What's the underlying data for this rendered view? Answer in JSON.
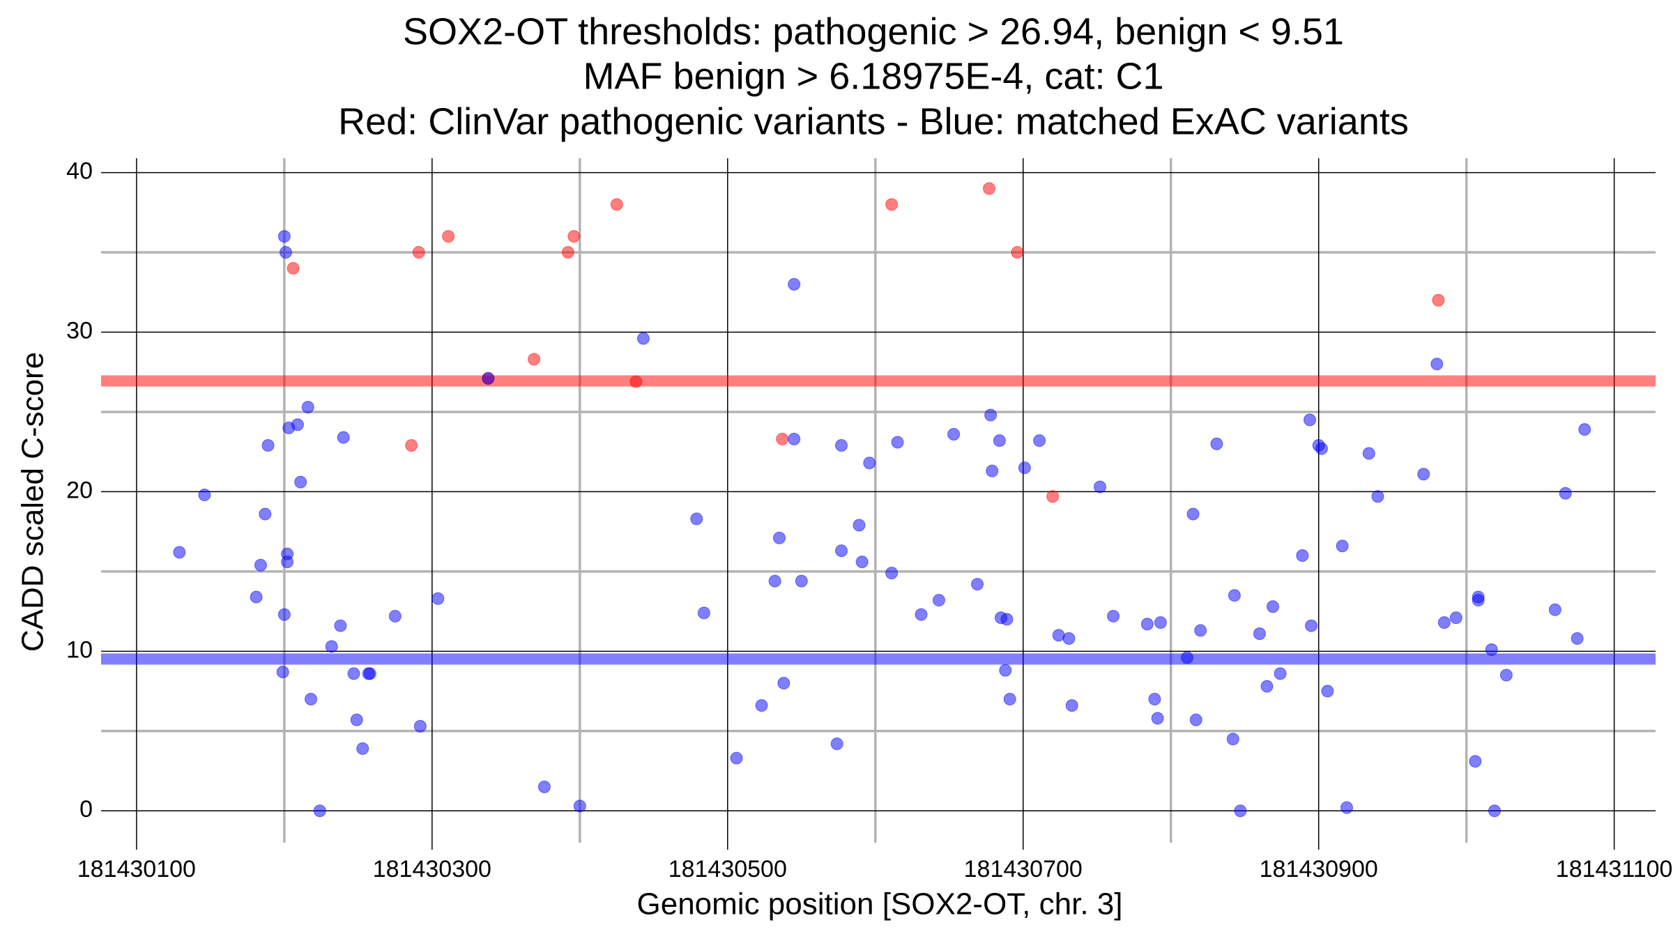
{
  "chart_data": {
    "type": "scatter",
    "title": [
      "SOX2-OT thresholds: pathogenic > 26.94, benign < 9.51",
      "MAF benign > 6.18975E-4, cat: C1",
      "Red: ClinVar pathogenic variants - Blue: matched ExAC variants"
    ],
    "x_label": "Genomic position [SOX2-OT, chr. 3]",
    "y_label": "CADD scaled C-score",
    "xlim": [
      181430076,
      181431128
    ],
    "ylim": [
      -2,
      40.9
    ],
    "xticks": [
      181430100,
      181430300,
      181430500,
      181430700,
      181430900,
      181431100
    ],
    "yticks": [
      0,
      10,
      20,
      30,
      40
    ],
    "x_minor_ticks": [
      181430200,
      181430400,
      181430600,
      181430800,
      181431000
    ],
    "y_minor_ticks": [
      5,
      15,
      25,
      35
    ],
    "grid": true,
    "hlines": [
      {
        "value": 26.94,
        "color": "#ff0000"
      },
      {
        "value": 9.51,
        "color": "#0000ff"
      }
    ],
    "series": [
      {
        "color": "#ff0000",
        "x": [
          181430206,
          181430291,
          181430311,
          181430338,
          181430369,
          181430392,
          181430396,
          181430425,
          181430438,
          181430286,
          181430537,
          181430611,
          181430677,
          181430696,
          181430720,
          181430981
        ],
        "values": [
          34.0,
          35.0,
          36.0,
          27.1,
          28.3,
          35.0,
          36.0,
          38.0,
          26.9,
          22.9,
          23.3,
          38.0,
          39.0,
          35.0,
          19.7,
          32.0
        ]
      },
      {
        "color": "#0000ff",
        "x": [
          181430129,
          181430146,
          181430181,
          181430184,
          181430187,
          181430189,
          181430200,
          181430201,
          181430203,
          181430202,
          181430202,
          181430200,
          181430199,
          181430209,
          181430211,
          181430216,
          181430218,
          181430224,
          181430232,
          181430238,
          181430240,
          181430247,
          181430249,
          181430253,
          181430257,
          181430258,
          181430275,
          181430292,
          181430304,
          181430338,
          181430376,
          181430400,
          181430443,
          181430479,
          181430484,
          181430506,
          181430523,
          181430532,
          181430535,
          181430538,
          181430545,
          181430545,
          181430550,
          181430574,
          181430577,
          181430577,
          181430589,
          181430591,
          181430596,
          181430611,
          181430615,
          181430631,
          181430643,
          181430653,
          181430669,
          181430678,
          181430679,
          181430684,
          181430685,
          181430689,
          181430688,
          181430691,
          181430701,
          181430711,
          181430724,
          181430731,
          181430733,
          181430752,
          181430761,
          181430784,
          181430789,
          181430791,
          181430793,
          181430811,
          181430815,
          181430817,
          181430820,
          181430831,
          181430842,
          181430843,
          181430847,
          181430860,
          181430865,
          181430869,
          181430874,
          181430889,
          181430894,
          181430895,
          181430900,
          181430902,
          181430906,
          181430916,
          181430919,
          181430934,
          181430940,
          181430971,
          181430980,
          181430985,
          181430993,
          181431006,
          181431008,
          181431008,
          181431017,
          181431019,
          181431027,
          181431060,
          181431067,
          181431075,
          181431080
        ],
        "values": [
          16.2,
          19.8,
          13.4,
          15.4,
          18.6,
          22.9,
          36.0,
          35.0,
          24.0,
          16.1,
          15.6,
          12.3,
          8.7,
          24.2,
          20.6,
          25.3,
          7.0,
          0.0,
          10.3,
          11.6,
          23.4,
          8.6,
          5.7,
          3.9,
          8.6,
          8.6,
          12.2,
          5.3,
          13.3,
          27.1,
          1.5,
          0.3,
          29.6,
          18.3,
          12.4,
          3.3,
          6.6,
          14.4,
          17.1,
          8.0,
          33.0,
          23.3,
          14.4,
          4.2,
          16.3,
          22.9,
          17.9,
          15.6,
          21.8,
          14.9,
          23.1,
          12.3,
          13.2,
          23.6,
          14.2,
          24.8,
          21.3,
          23.2,
          12.1,
          12.0,
          8.8,
          7.0,
          21.5,
          23.2,
          11.0,
          10.8,
          6.6,
          20.3,
          12.2,
          11.7,
          7.0,
          5.8,
          11.8,
          9.6,
          18.6,
          5.7,
          11.3,
          23.0,
          4.5,
          13.5,
          0.0,
          11.1,
          7.8,
          12.8,
          8.6,
          16.0,
          24.5,
          11.6,
          22.9,
          22.7,
          7.5,
          16.6,
          0.2,
          22.4,
          19.7,
          21.1,
          28.0,
          11.8,
          12.1,
          3.1,
          13.4,
          13.2,
          10.1,
          0.0,
          8.5,
          12.6,
          19.9,
          10.8,
          23.9
        ]
      }
    ]
  }
}
